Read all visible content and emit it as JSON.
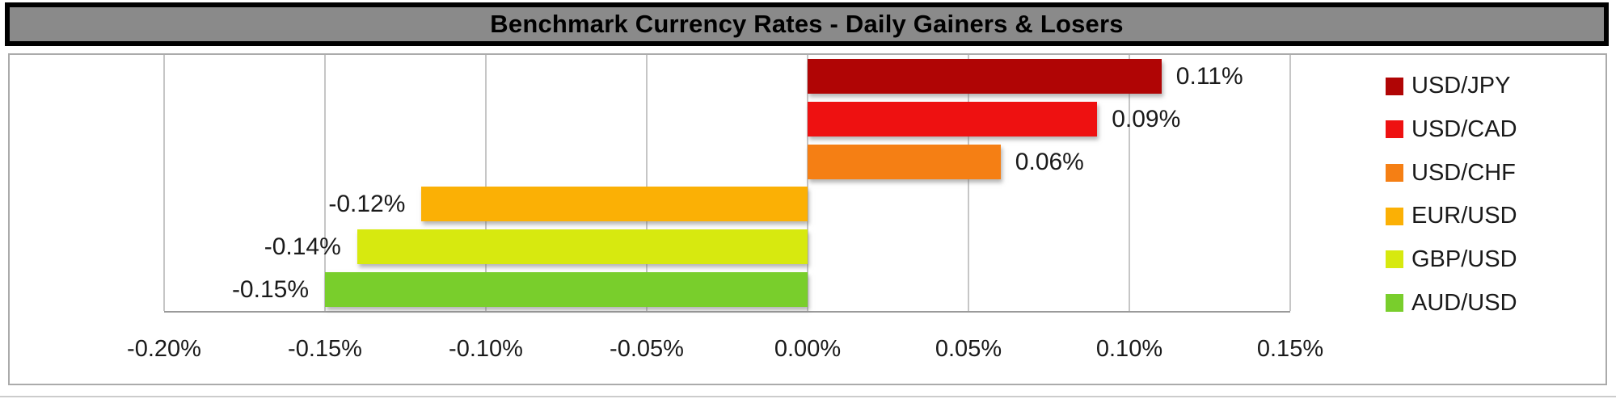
{
  "chart_data": {
    "type": "bar",
    "orientation": "horizontal",
    "title": "Benchmark Currency Rates - Daily Gainers & Losers",
    "categories": [
      "USD/JPY",
      "USD/CAD",
      "USD/CHF",
      "EUR/USD",
      "GBP/USD",
      "AUD/USD"
    ],
    "values": [
      0.11,
      0.09,
      0.06,
      -0.12,
      -0.14,
      -0.15
    ],
    "data_labels": [
      "0.11%",
      "0.09%",
      "0.06%",
      "-0.12%",
      "-0.14%",
      "-0.15%"
    ],
    "bar_colors": [
      "#B00505",
      "#EE1111",
      "#F57F14",
      "#FBB005",
      "#D7E90F",
      "#79CE2C"
    ],
    "xlabel": "",
    "ylabel": "",
    "xlim": [
      -0.2,
      0.15
    ],
    "x_tick_step": 0.05,
    "x_tick_labels": [
      "-0.20%",
      "-0.15%",
      "-0.10%",
      "-0.05%",
      "0.00%",
      "0.05%",
      "0.10%",
      "0.15%"
    ],
    "grid": true,
    "legend_position": "right"
  },
  "colors": {
    "title_bg": "#8A8A8A",
    "title_border": "#000000",
    "title_text": "#000000",
    "gridline": "#C6C6C6",
    "axis_line": "#9A9A9A",
    "outer_border": "#ABABAB",
    "background": "#FFFFFF"
  }
}
